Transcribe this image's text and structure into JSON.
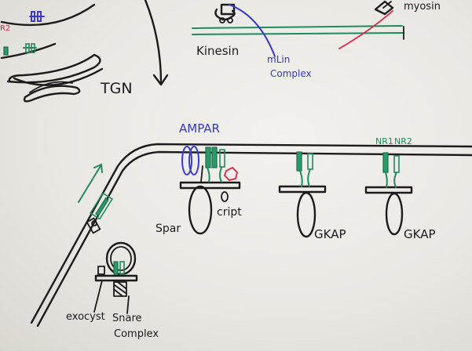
{
  "labels": {
    "tgn": "TGN",
    "kinesin": "Kinesin",
    "mlin_complex_1": "mLin",
    "mlin_complex_2": "Complex",
    "myosin": "myosin",
    "ampar": "AMPAR",
    "nr1": "NR1",
    "nr2": "NR2",
    "nr2_fragment": "R2",
    "spar": "Spar",
    "cript": "cript",
    "gkap_1": "GKAP",
    "gkap_2": "GKAP",
    "exocyst": "exocyst",
    "snare_1": "Snare",
    "snare_2": "Complex"
  },
  "colors": {
    "ink": "#1b1b1b",
    "green": "#1f8a5c",
    "blue": "#3336c4",
    "red": "#d8233f"
  }
}
